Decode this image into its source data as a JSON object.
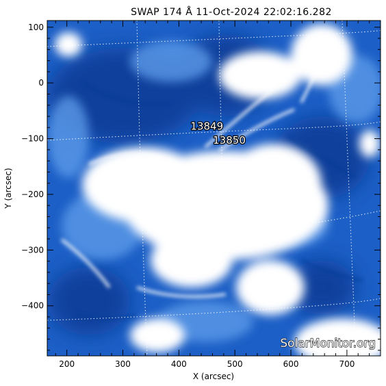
{
  "title": "SWAP 174 Å 11-Oct-2024 22:02:16.282",
  "x_axis": {
    "label": "X (arcsec)",
    "range": [
      165,
      760
    ],
    "ticks": [
      200,
      300,
      400,
      500,
      600,
      700
    ],
    "tick_labels": [
      "200",
      "300",
      "400",
      "500",
      "600",
      "700"
    ]
  },
  "y_axis": {
    "label": "Y (arcsec)",
    "range": [
      -490,
      112
    ],
    "ticks": [
      100,
      0,
      -100,
      -200,
      -300,
      -400
    ],
    "tick_labels": [
      "100",
      "0",
      "−100",
      "−200",
      "−300",
      "−400"
    ]
  },
  "active_regions": [
    {
      "number": "13849",
      "x": 450,
      "y": -84
    },
    {
      "number": "13850",
      "x": 490,
      "y": -109
    }
  ],
  "watermark": "SolarMonitor.org",
  "colors": {
    "background": "#1c5fc6",
    "dark": "#0a3a94",
    "bright": "#ffffff",
    "grid": "#ffffff"
  }
}
